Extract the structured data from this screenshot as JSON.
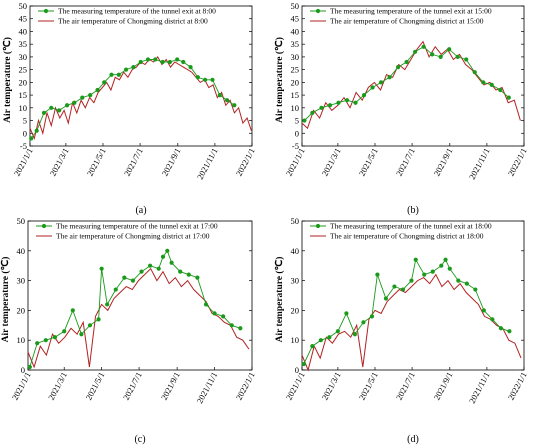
{
  "chart_data": [
    {
      "type": "line",
      "panel_label": "(a)",
      "ylabel": "Air temperature  (℃)",
      "ylim": [
        -5,
        50
      ],
      "yticks": [
        -5,
        0,
        5,
        10,
        15,
        20,
        25,
        30,
        35,
        40,
        45,
        50
      ],
      "xticks": [
        "2021/1/1",
        "2021/3/1",
        "2021/5/1",
        "2021/7/1",
        "2021/9/1",
        "2021/11/1",
        "2022/1/1"
      ],
      "legend": {
        "position": "top",
        "entries": [
          "The measuring temperature of the tunnel exit at 8:00",
          "The air temperature of Chongming district at 8:00"
        ]
      },
      "series": [
        {
          "name": "The measuring temperature of the tunnel exit at 8:00",
          "color": "#1a9a1a",
          "marker": "circle",
          "x": [
            "2021/1/3",
            "2021/1/12",
            "2021/1/24",
            "2021/2/5",
            "2021/2/18",
            "2021/3/3",
            "2021/3/15",
            "2021/3/28",
            "2021/4/10",
            "2021/4/22",
            "2021/5/3",
            "2021/5/15",
            "2021/5/27",
            "2021/6/8",
            "2021/6/20",
            "2021/7/2",
            "2021/7/14",
            "2021/7/26",
            "2021/8/7",
            "2021/8/19",
            "2021/8/31",
            "2021/9/10",
            "2021/9/22",
            "2021/10/4",
            "2021/10/16",
            "2021/10/28",
            "2021/11/9",
            "2021/11/21",
            "2021/12/3"
          ],
          "y": [
            -2,
            1,
            8,
            10,
            9,
            11,
            12,
            14,
            15,
            17,
            20,
            23,
            23,
            25,
            26,
            28,
            29,
            29,
            28,
            28,
            29,
            28,
            26,
            22,
            21,
            21,
            15,
            13,
            11
          ]
        },
        {
          "name": "The air temperature of Chongming district at 8:00",
          "color": "#b22222",
          "marker": "none",
          "x": [
            "2021/1/1",
            "2021/1/8",
            "2021/1/15",
            "2021/1/22",
            "2021/1/29",
            "2021/2/5",
            "2021/2/12",
            "2021/2/19",
            "2021/2/26",
            "2021/3/5",
            "2021/3/12",
            "2021/3/19",
            "2021/3/26",
            "2021/4/2",
            "2021/4/9",
            "2021/4/16",
            "2021/4/23",
            "2021/4/30",
            "2021/5/7",
            "2021/5/14",
            "2021/5/21",
            "2021/5/28",
            "2021/6/4",
            "2021/6/11",
            "2021/6/18",
            "2021/6/25",
            "2021/7/2",
            "2021/7/9",
            "2021/7/16",
            "2021/7/23",
            "2021/7/30",
            "2021/8/6",
            "2021/8/13",
            "2021/8/20",
            "2021/8/27",
            "2021/9/3",
            "2021/9/10",
            "2021/9/17",
            "2021/9/24",
            "2021/10/1",
            "2021/10/8",
            "2021/10/15",
            "2021/10/22",
            "2021/10/29",
            "2021/11/5",
            "2021/11/12",
            "2021/11/19",
            "2021/11/26",
            "2021/12/3",
            "2021/12/10",
            "2021/12/17",
            "2021/12/24",
            "2021/12/31"
          ],
          "y": [
            2,
            -2,
            5,
            0,
            8,
            3,
            10,
            6,
            9,
            4,
            12,
            8,
            13,
            10,
            14,
            12,
            16,
            18,
            20,
            17,
            22,
            21,
            24,
            22,
            25,
            26,
            28,
            27,
            29,
            28,
            30,
            27,
            29,
            26,
            28,
            27,
            26,
            25,
            24,
            22,
            20,
            21,
            18,
            19,
            14,
            16,
            11,
            13,
            8,
            10,
            4,
            6,
            1
          ]
        }
      ]
    },
    {
      "type": "line",
      "panel_label": "(b)",
      "ylabel": "Air temperature  (℃)",
      "ylim": [
        -5,
        50
      ],
      "yticks": [
        -5,
        0,
        5,
        10,
        15,
        20,
        25,
        30,
        35,
        40,
        45,
        50
      ],
      "xticks": [
        "2021/1/1",
        "2021/3/1",
        "2021/5/1",
        "2021/7/1",
        "2021/9/1",
        "2021/11/1",
        "2022/1/1"
      ],
      "legend": {
        "position": "top",
        "entries": [
          "The measuring temperature of the tunnel exit at 15:00",
          "The air temperature of Chongming district at 15:00"
        ]
      },
      "series": [
        {
          "name": "The measuring temperature of the tunnel exit at 15:00",
          "color": "#1a9a1a",
          "marker": "circle",
          "x": [
            "2021/1/5",
            "2021/1/18",
            "2021/2/2",
            "2021/2/16",
            "2021/3/2",
            "2021/3/16",
            "2021/3/30",
            "2021/4/13",
            "2021/4/27",
            "2021/5/11",
            "2021/5/25",
            "2021/6/8",
            "2021/6/22",
            "2021/7/6",
            "2021/7/20",
            "2021/8/3",
            "2021/8/17",
            "2021/8/31",
            "2021/9/14",
            "2021/9/28",
            "2021/10/12",
            "2021/10/26",
            "2021/11/9",
            "2021/11/23",
            "2021/12/7"
          ],
          "y": [
            5,
            8,
            10,
            11,
            12,
            13,
            12,
            15,
            18,
            20,
            22,
            26,
            28,
            32,
            34,
            31,
            30,
            33,
            30,
            29,
            24,
            20,
            19,
            17,
            14
          ]
        },
        {
          "name": "The air temperature of Chongming district at 15:00",
          "color": "#b22222",
          "marker": "none",
          "x": [
            "2021/1/1",
            "2021/1/10",
            "2021/1/20",
            "2021/1/30",
            "2021/2/9",
            "2021/2/19",
            "2021/3/1",
            "2021/3/11",
            "2021/3/21",
            "2021/3/31",
            "2021/4/10",
            "2021/4/20",
            "2021/4/30",
            "2021/5/10",
            "2021/5/20",
            "2021/5/30",
            "2021/6/9",
            "2021/6/19",
            "2021/6/29",
            "2021/7/9",
            "2021/7/19",
            "2021/7/29",
            "2021/8/8",
            "2021/8/18",
            "2021/8/28",
            "2021/9/7",
            "2021/9/17",
            "2021/9/27",
            "2021/10/7",
            "2021/10/17",
            "2021/10/27",
            "2021/11/6",
            "2021/11/16",
            "2021/11/26",
            "2021/12/6",
            "2021/12/16",
            "2021/12/26"
          ],
          "y": [
            4,
            2,
            9,
            6,
            12,
            9,
            11,
            14,
            10,
            16,
            13,
            18,
            20,
            17,
            23,
            22,
            27,
            25,
            29,
            33,
            36,
            30,
            34,
            31,
            33,
            29,
            31,
            27,
            25,
            22,
            19,
            20,
            17,
            18,
            12,
            13,
            5
          ]
        }
      ]
    },
    {
      "type": "line",
      "panel_label": "(c)",
      "ylabel": "Air temperature  (℃)",
      "ylim": [
        0,
        50
      ],
      "yticks": [
        0,
        10,
        20,
        30,
        40,
        50
      ],
      "xticks": [
        "2021/1/1",
        "2021/3/1",
        "2021/5/1",
        "2021/7/1",
        "2021/9/1",
        "2021/11/1",
        "2022/1/1"
      ],
      "legend": {
        "position": "top",
        "entries": [
          "The measuring temperature of the tunnel exit at 17:00",
          "The air temperature of Chongming district at 17:00"
        ]
      },
      "series": [
        {
          "name": "The measuring temperature of the tunnel exit at 17:00",
          "color": "#1a9a1a",
          "marker": "circle",
          "x": [
            "2021/1/4",
            "2021/1/16",
            "2021/1/30",
            "2021/2/14",
            "2021/3/1",
            "2021/3/15",
            "2021/3/29",
            "2021/4/12",
            "2021/4/26",
            "2021/5/1",
            "2021/5/10",
            "2021/5/24",
            "2021/6/7",
            "2021/6/21",
            "2021/7/5",
            "2021/7/19",
            "2021/8/2",
            "2021/8/9",
            "2021/8/16",
            "2021/8/23",
            "2021/9/6",
            "2021/9/20",
            "2021/10/4",
            "2021/10/18",
            "2021/11/1",
            "2021/11/15",
            "2021/11/29",
            "2021/12/13"
          ],
          "y": [
            1,
            9,
            10,
            11,
            13,
            20,
            12,
            15,
            17,
            34,
            22,
            27,
            31,
            30,
            33,
            35,
            34,
            38,
            40,
            36,
            33,
            32,
            31,
            22,
            19,
            18,
            15,
            14
          ]
        },
        {
          "name": "The air temperature of Chongming district at 17:00",
          "color": "#b22222",
          "marker": "none",
          "x": [
            "2021/1/1",
            "2021/1/11",
            "2021/1/21",
            "2021/1/31",
            "2021/2/10",
            "2021/2/20",
            "2021/3/2",
            "2021/3/12",
            "2021/3/22",
            "2021/4/1",
            "2021/4/11",
            "2021/4/21",
            "2021/5/1",
            "2021/5/11",
            "2021/5/21",
            "2021/5/31",
            "2021/6/10",
            "2021/6/20",
            "2021/6/30",
            "2021/7/10",
            "2021/7/20",
            "2021/7/30",
            "2021/8/9",
            "2021/8/19",
            "2021/8/29",
            "2021/9/8",
            "2021/9/18",
            "2021/9/28",
            "2021/10/8",
            "2021/10/18",
            "2021/10/28",
            "2021/11/7",
            "2021/11/17",
            "2021/11/27",
            "2021/12/7",
            "2021/12/17",
            "2021/12/27"
          ],
          "y": [
            6,
            1,
            8,
            5,
            12,
            9,
            11,
            14,
            12,
            16,
            1,
            18,
            22,
            20,
            24,
            26,
            28,
            27,
            30,
            32,
            34,
            30,
            33,
            29,
            31,
            28,
            30,
            27,
            25,
            23,
            19,
            18,
            16,
            15,
            11,
            10,
            7
          ]
        }
      ]
    },
    {
      "type": "line",
      "panel_label": "(d)",
      "ylabel": "Air temperature  (℃)",
      "ylim": [
        0,
        50
      ],
      "yticks": [
        0,
        10,
        20,
        30,
        40,
        50
      ],
      "xticks": [
        "2021/1/1",
        "2021/3/1",
        "2021/5/1",
        "2021/7/1",
        "2021/9/1",
        "2021/11/1",
        "2022/1/1"
      ],
      "legend": {
        "position": "top",
        "entries": [
          "The measuring temperature of the tunnel exit at 18:00",
          "The air temperature of Chongming district at 18:00"
        ]
      },
      "series": [
        {
          "name": "The measuring temperature of the tunnel exit at 18:00",
          "color": "#1a9a1a",
          "marker": "circle",
          "x": [
            "2021/1/4",
            "2021/1/18",
            "2021/2/1",
            "2021/2/15",
            "2021/3/1",
            "2021/3/15",
            "2021/3/29",
            "2021/4/12",
            "2021/4/26",
            "2021/5/5",
            "2021/5/19",
            "2021/6/2",
            "2021/6/16",
            "2021/6/30",
            "2021/7/7",
            "2021/7/21",
            "2021/8/4",
            "2021/8/18",
            "2021/8/25",
            "2021/9/1",
            "2021/9/15",
            "2021/9/29",
            "2021/10/13",
            "2021/10/27",
            "2021/11/10",
            "2021/11/24",
            "2021/12/8"
          ],
          "y": [
            2,
            8,
            10,
            11,
            13,
            19,
            12,
            16,
            18,
            32,
            24,
            28,
            27,
            30,
            37,
            32,
            33,
            35,
            37,
            34,
            30,
            29,
            27,
            20,
            17,
            14,
            13
          ]
        },
        {
          "name": "The air temperature of Chongming district at 18:00",
          "color": "#b22222",
          "marker": "none",
          "x": [
            "2021/1/1",
            "2021/1/11",
            "2021/1/21",
            "2021/1/31",
            "2021/2/10",
            "2021/2/20",
            "2021/3/2",
            "2021/3/12",
            "2021/3/22",
            "2021/4/1",
            "2021/4/11",
            "2021/4/21",
            "2021/5/1",
            "2021/5/11",
            "2021/5/21",
            "2021/5/31",
            "2021/6/10",
            "2021/6/20",
            "2021/6/30",
            "2021/7/10",
            "2021/7/20",
            "2021/7/30",
            "2021/8/9",
            "2021/8/19",
            "2021/8/29",
            "2021/9/8",
            "2021/9/18",
            "2021/9/28",
            "2021/10/8",
            "2021/10/18",
            "2021/10/28",
            "2021/11/7",
            "2021/11/17",
            "2021/11/27",
            "2021/12/7",
            "2021/12/17",
            "2021/12/27"
          ],
          "y": [
            5,
            0,
            8,
            4,
            11,
            9,
            12,
            13,
            11,
            15,
            1,
            17,
            20,
            19,
            23,
            25,
            27,
            26,
            28,
            30,
            31,
            29,
            32,
            28,
            30,
            27,
            29,
            26,
            24,
            22,
            18,
            17,
            15,
            14,
            10,
            9,
            4
          ]
        }
      ]
    }
  ]
}
